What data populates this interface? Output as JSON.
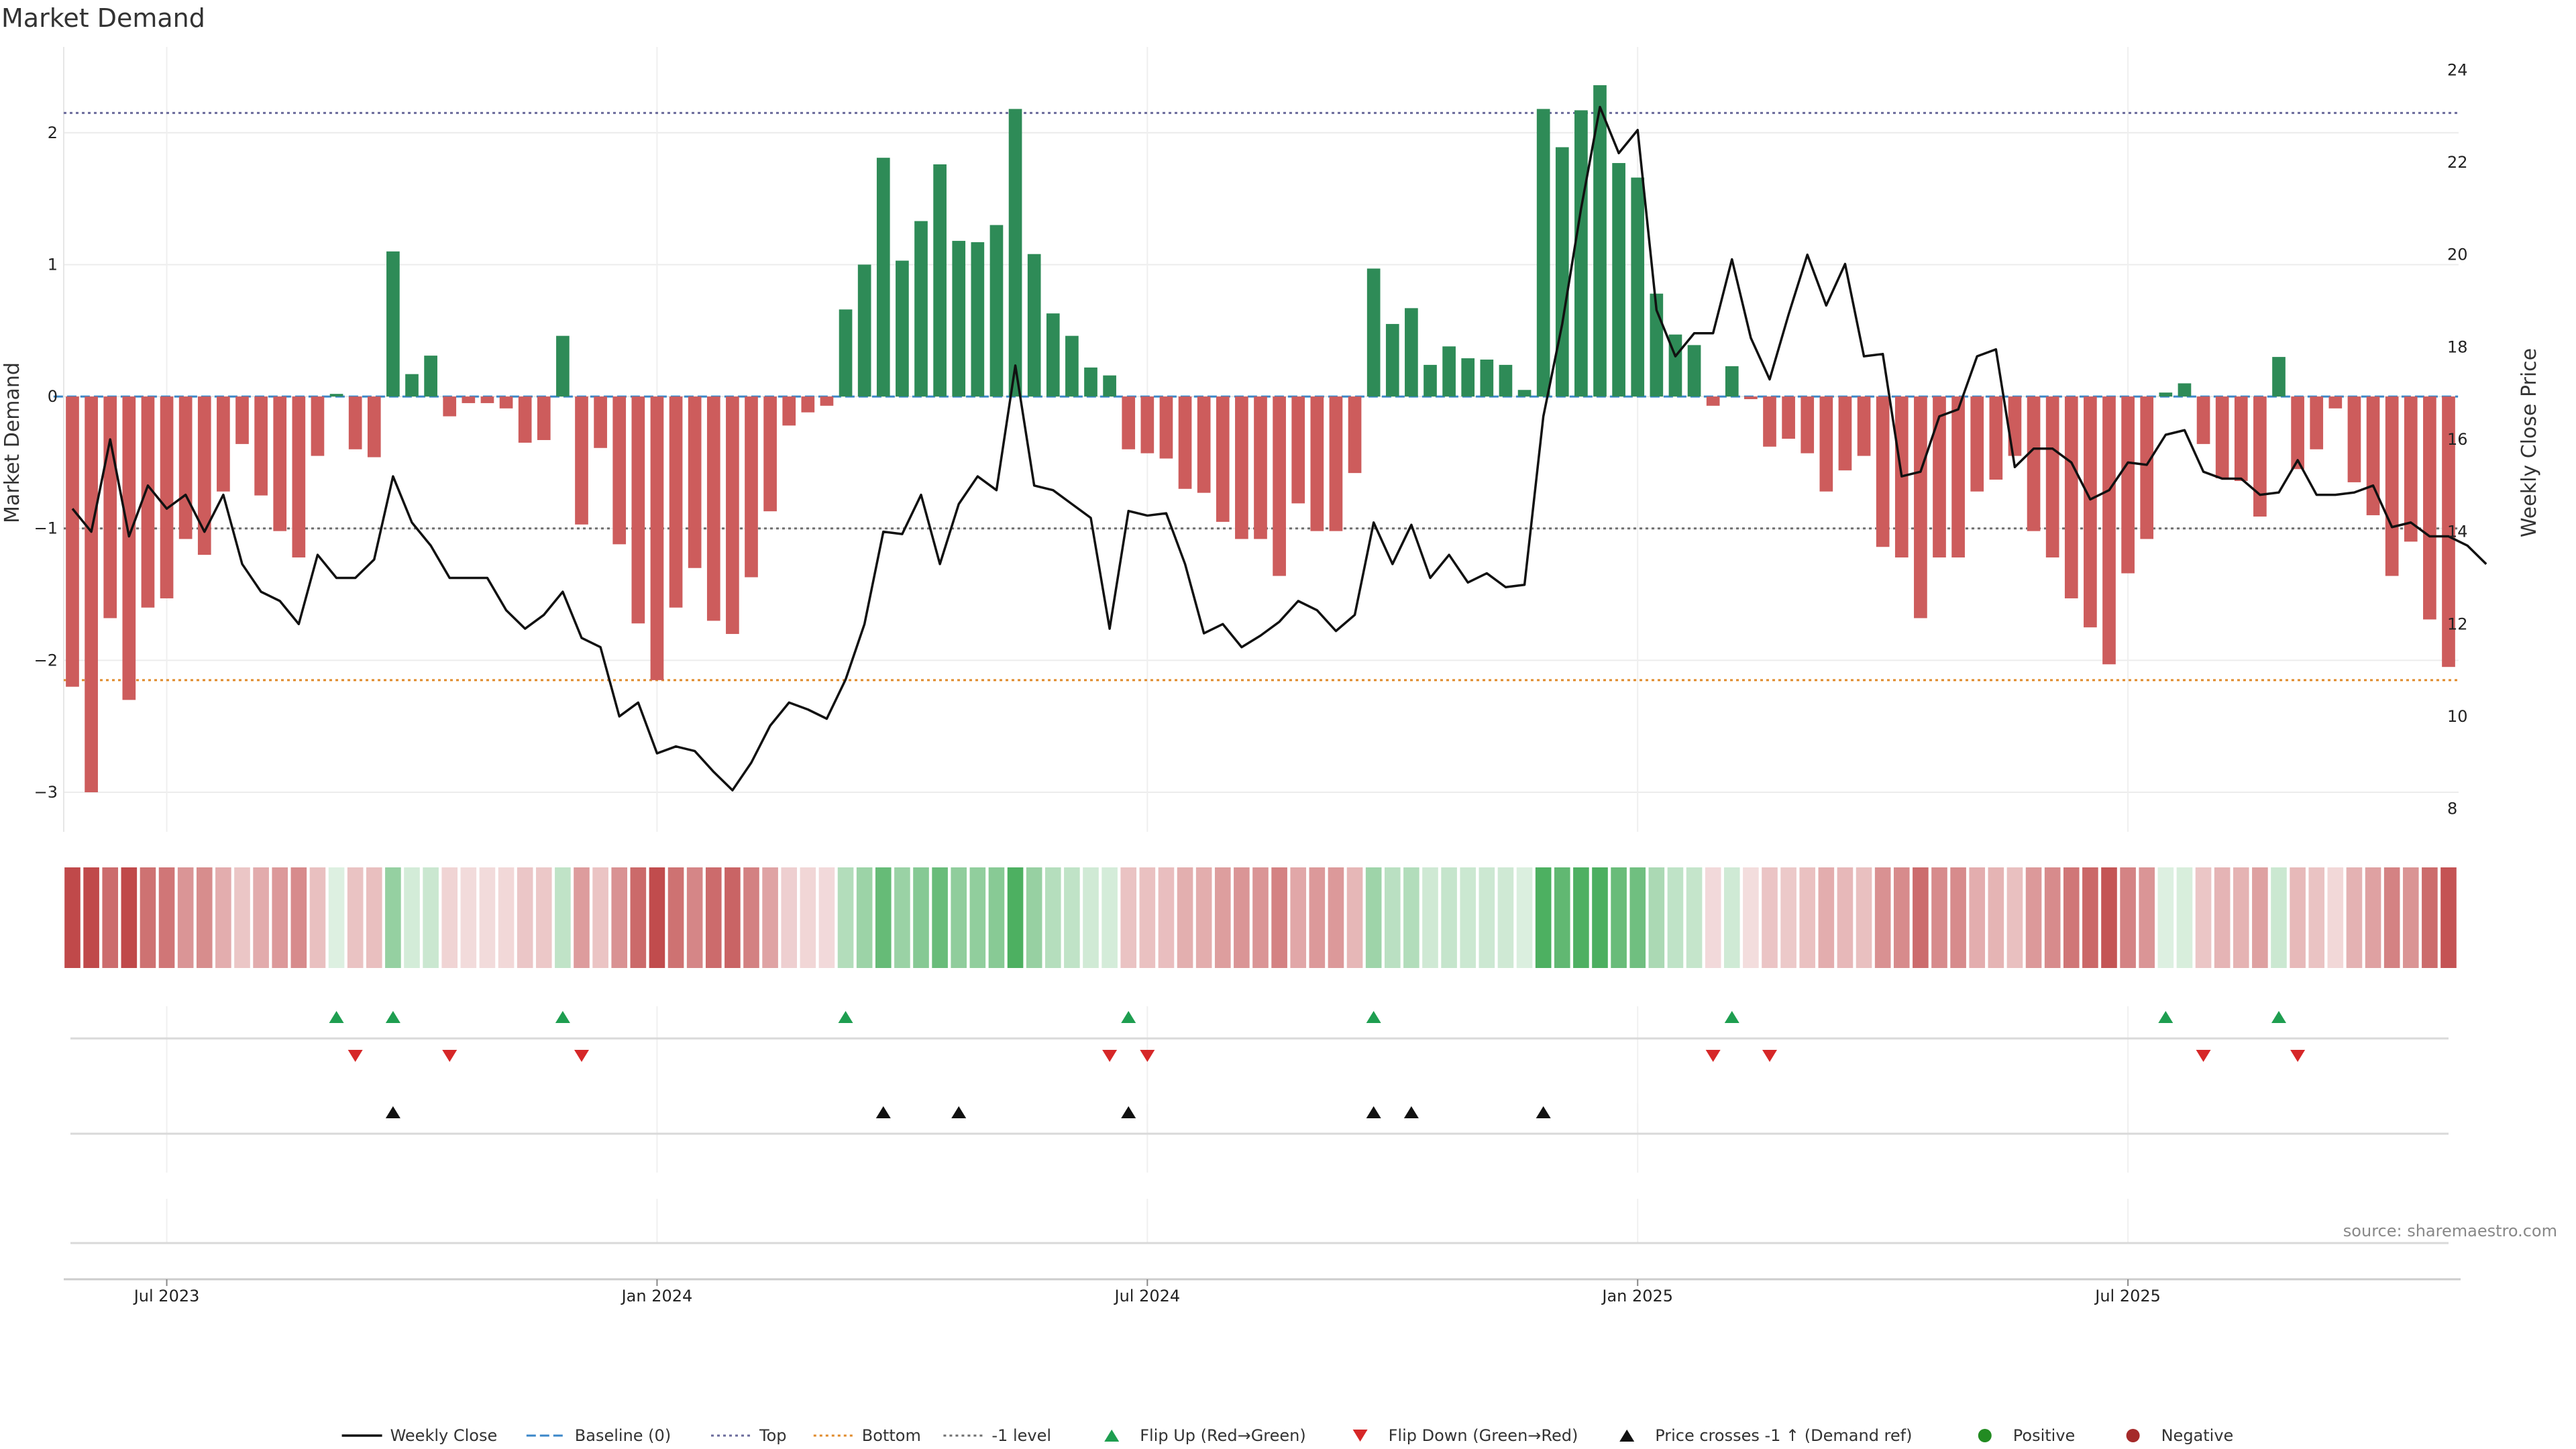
{
  "chart_data": {
    "type": "bar",
    "title": "Market Demand",
    "ylabel_left": "Market Demand",
    "ylabel_right": "Weekly Close Price",
    "ylim_left": [
      -3.3,
      2.65
    ],
    "ylim_right": [
      7.5,
      24.5
    ],
    "yticks_left": [
      2,
      1,
      0,
      -1,
      -2,
      -3
    ],
    "yticks_left_labels": [
      "2",
      "1",
      "0",
      "−1",
      "−2",
      "−3"
    ],
    "yticks_right": [
      24,
      22,
      20,
      18,
      16,
      14,
      12,
      10,
      8
    ],
    "yticks_right_labels": [
      "24",
      "22",
      "20",
      "18",
      "16",
      "14",
      "12",
      "10",
      "8"
    ],
    "top_level": 2.15,
    "bottom_level": -2.15,
    "minus_one_level": -1,
    "xticks": [
      {
        "index": 5,
        "label": "Jul 2023"
      },
      {
        "index": 31,
        "label": "Jan 2024"
      },
      {
        "index": 57,
        "label": "Jul 2024"
      },
      {
        "index": 83,
        "label": "Jan 2025"
      },
      {
        "index": 109,
        "label": "Jul 2025"
      }
    ],
    "demand": [
      -2.2,
      -3,
      -1.68,
      -2.3,
      -1.6,
      -1.53,
      -1.08,
      -1.2,
      -0.72,
      -0.36,
      -0.75,
      -1.02,
      -1.22,
      -0.45,
      0.02,
      -0.4,
      -0.46,
      1.1,
      0.17,
      0.31,
      -0.15,
      -0.05,
      -0.05,
      -0.09,
      -0.35,
      -0.33,
      0.46,
      -0.97,
      -0.39,
      -1.12,
      -1.72,
      -2.15,
      -1.6,
      -1.3,
      -1.7,
      -1.8,
      -1.37,
      -0.87,
      -0.22,
      -0.12,
      -0.07,
      0.66,
      1.0,
      1.81,
      1.03,
      1.33,
      1.76,
      1.18,
      1.17,
      1.3,
      2.18,
      1.08,
      0.63,
      0.46,
      0.22,
      0.16,
      -0.4,
      -0.43,
      -0.47,
      -0.7,
      -0.73,
      -0.95,
      -1.08,
      -1.08,
      -1.36,
      -0.81,
      -1.02,
      -1.02,
      -0.58,
      0.97,
      0.55,
      0.67,
      0.24,
      0.38,
      0.29,
      0.28,
      0.24,
      0.05,
      2.18,
      1.89,
      2.17,
      2.36,
      1.77,
      1.66,
      0.78,
      0.47,
      0.39,
      -0.07,
      0.23,
      -0.02,
      -0.38,
      -0.32,
      -0.43,
      -0.72,
      -0.56,
      -0.45,
      -1.14,
      -1.22,
      -1.68,
      -1.22,
      -1.22,
      -0.72,
      -0.63,
      -0.45,
      -1.02,
      -1.22,
      -1.53,
      -1.75,
      -2.03,
      -1.34,
      -1.08,
      0.03,
      0.1,
      -0.36,
      -0.62,
      -0.64,
      -0.91,
      0.3,
      -0.55,
      -0.4,
      -0.09,
      -0.65,
      -0.9,
      -1.36,
      -1.1,
      -1.69,
      -2.05
    ],
    "weekly_close": [
      14.5,
      14,
      16,
      13.9,
      15,
      14.5,
      14.8,
      14,
      14.8,
      13.3,
      12.7,
      12.5,
      12,
      13.5,
      13,
      13,
      13.4,
      15.2,
      14.2,
      13.7,
      13,
      13,
      13,
      12.3,
      11.9,
      12.2,
      12.7,
      11.7,
      11.5,
      10,
      10.3,
      9.2,
      9.35,
      9.25,
      8.8,
      8.4,
      9.0,
      9.8,
      10.3,
      10.15,
      9.95,
      10.8,
      12,
      14,
      13.95,
      14.8,
      13.3,
      14.6,
      15.2,
      14.9,
      17.6,
      15,
      14.9,
      14.6,
      14.3,
      11.9,
      14.45,
      14.35,
      14.4,
      13.3,
      11.8,
      12,
      11.5,
      11.75,
      12.05,
      12.5,
      12.3,
      11.85,
      12.2,
      14.2,
      13.3,
      14.15,
      13,
      13.5,
      12.9,
      13.1,
      12.8,
      12.85,
      16.5,
      18.5,
      21,
      23.2,
      22.2,
      22.7,
      18.8,
      17.8,
      18.3,
      18.3,
      19.9,
      18.2,
      17.3,
      18.7,
      20,
      18.9,
      19.8,
      17.8,
      17.85,
      15.2,
      15.3,
      16.5,
      16.65,
      17.8,
      17.95,
      15.4,
      15.8,
      15.8,
      15.5,
      14.7,
      14.9,
      15.5,
      15.45,
      16.1,
      16.2,
      15.3,
      15.15,
      15.15,
      14.8,
      14.85,
      15.55,
      14.8,
      14.8,
      14.85,
      15,
      14.1,
      14.2,
      13.9,
      13.9,
      13.7,
      13.3
    ],
    "flip_up_indices": [
      14,
      17,
      26,
      41,
      56,
      69,
      88,
      111,
      117
    ],
    "flip_down_indices": [
      15,
      20,
      27,
      55,
      57,
      87,
      90,
      113,
      118
    ],
    "price_cross_indices": [
      17,
      43,
      47,
      56,
      69,
      71,
      78
    ],
    "colors": {
      "positive_bar": "#2e8b57",
      "negative_bar": "#cd5c5c",
      "price_line": "#111111",
      "top_line": "#6b6b9b",
      "bottom_line": "#e08a2a",
      "minus_one_line": "#6e6e6e",
      "flip_up": "#1e9e50",
      "flip_down": "#d62728",
      "price_cross": "#111111",
      "positive_dot": "#228b22",
      "negative_dot": "#a52a2a"
    },
    "legend": [
      {
        "key": "weekly-close",
        "label": "Weekly Close",
        "kind": "line"
      },
      {
        "key": "baseline",
        "label": "Baseline (0)",
        "kind": "dash"
      },
      {
        "key": "top",
        "label": "Top",
        "kind": "dotted-top"
      },
      {
        "key": "bottom",
        "label": "Bottom",
        "kind": "dotted-bottom"
      },
      {
        "key": "minus-one",
        "label": "-1 level",
        "kind": "dotted-minus"
      },
      {
        "key": "flip-up",
        "label": "Flip Up (Red→Green)",
        "kind": "tri-up-green"
      },
      {
        "key": "flip-down",
        "label": "Flip Down (Green→Red)",
        "kind": "tri-down-red"
      },
      {
        "key": "price-cross",
        "label": "Price crosses -1 ↑ (Demand ref)",
        "kind": "tri-up-black"
      },
      {
        "key": "positive",
        "label": "Positive",
        "kind": "dot-green"
      },
      {
        "key": "negative",
        "label": "Negative",
        "kind": "dot-red"
      }
    ],
    "source": "source: sharemaestro.com"
  }
}
